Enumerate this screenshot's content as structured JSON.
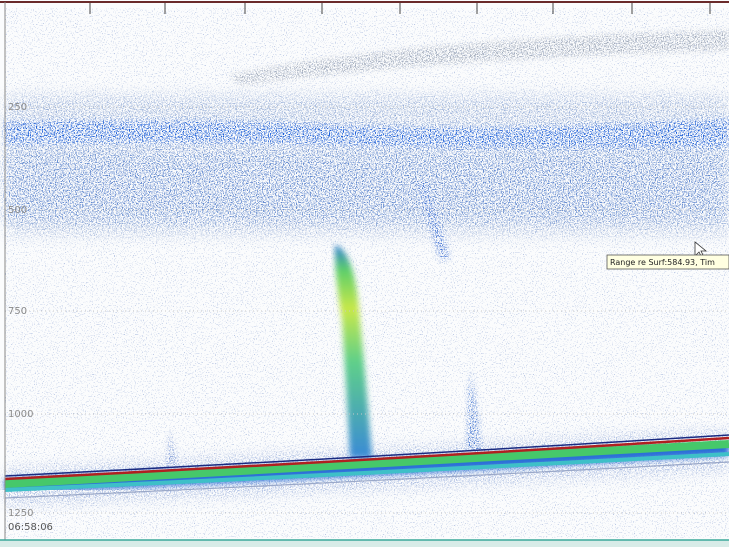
{
  "axis": {
    "depth_labels": [
      "250",
      "500",
      "750",
      "1000",
      "1250"
    ],
    "time_label": "06:58:06"
  },
  "tooltip": "Range re Surf:584.93, Tim"
}
